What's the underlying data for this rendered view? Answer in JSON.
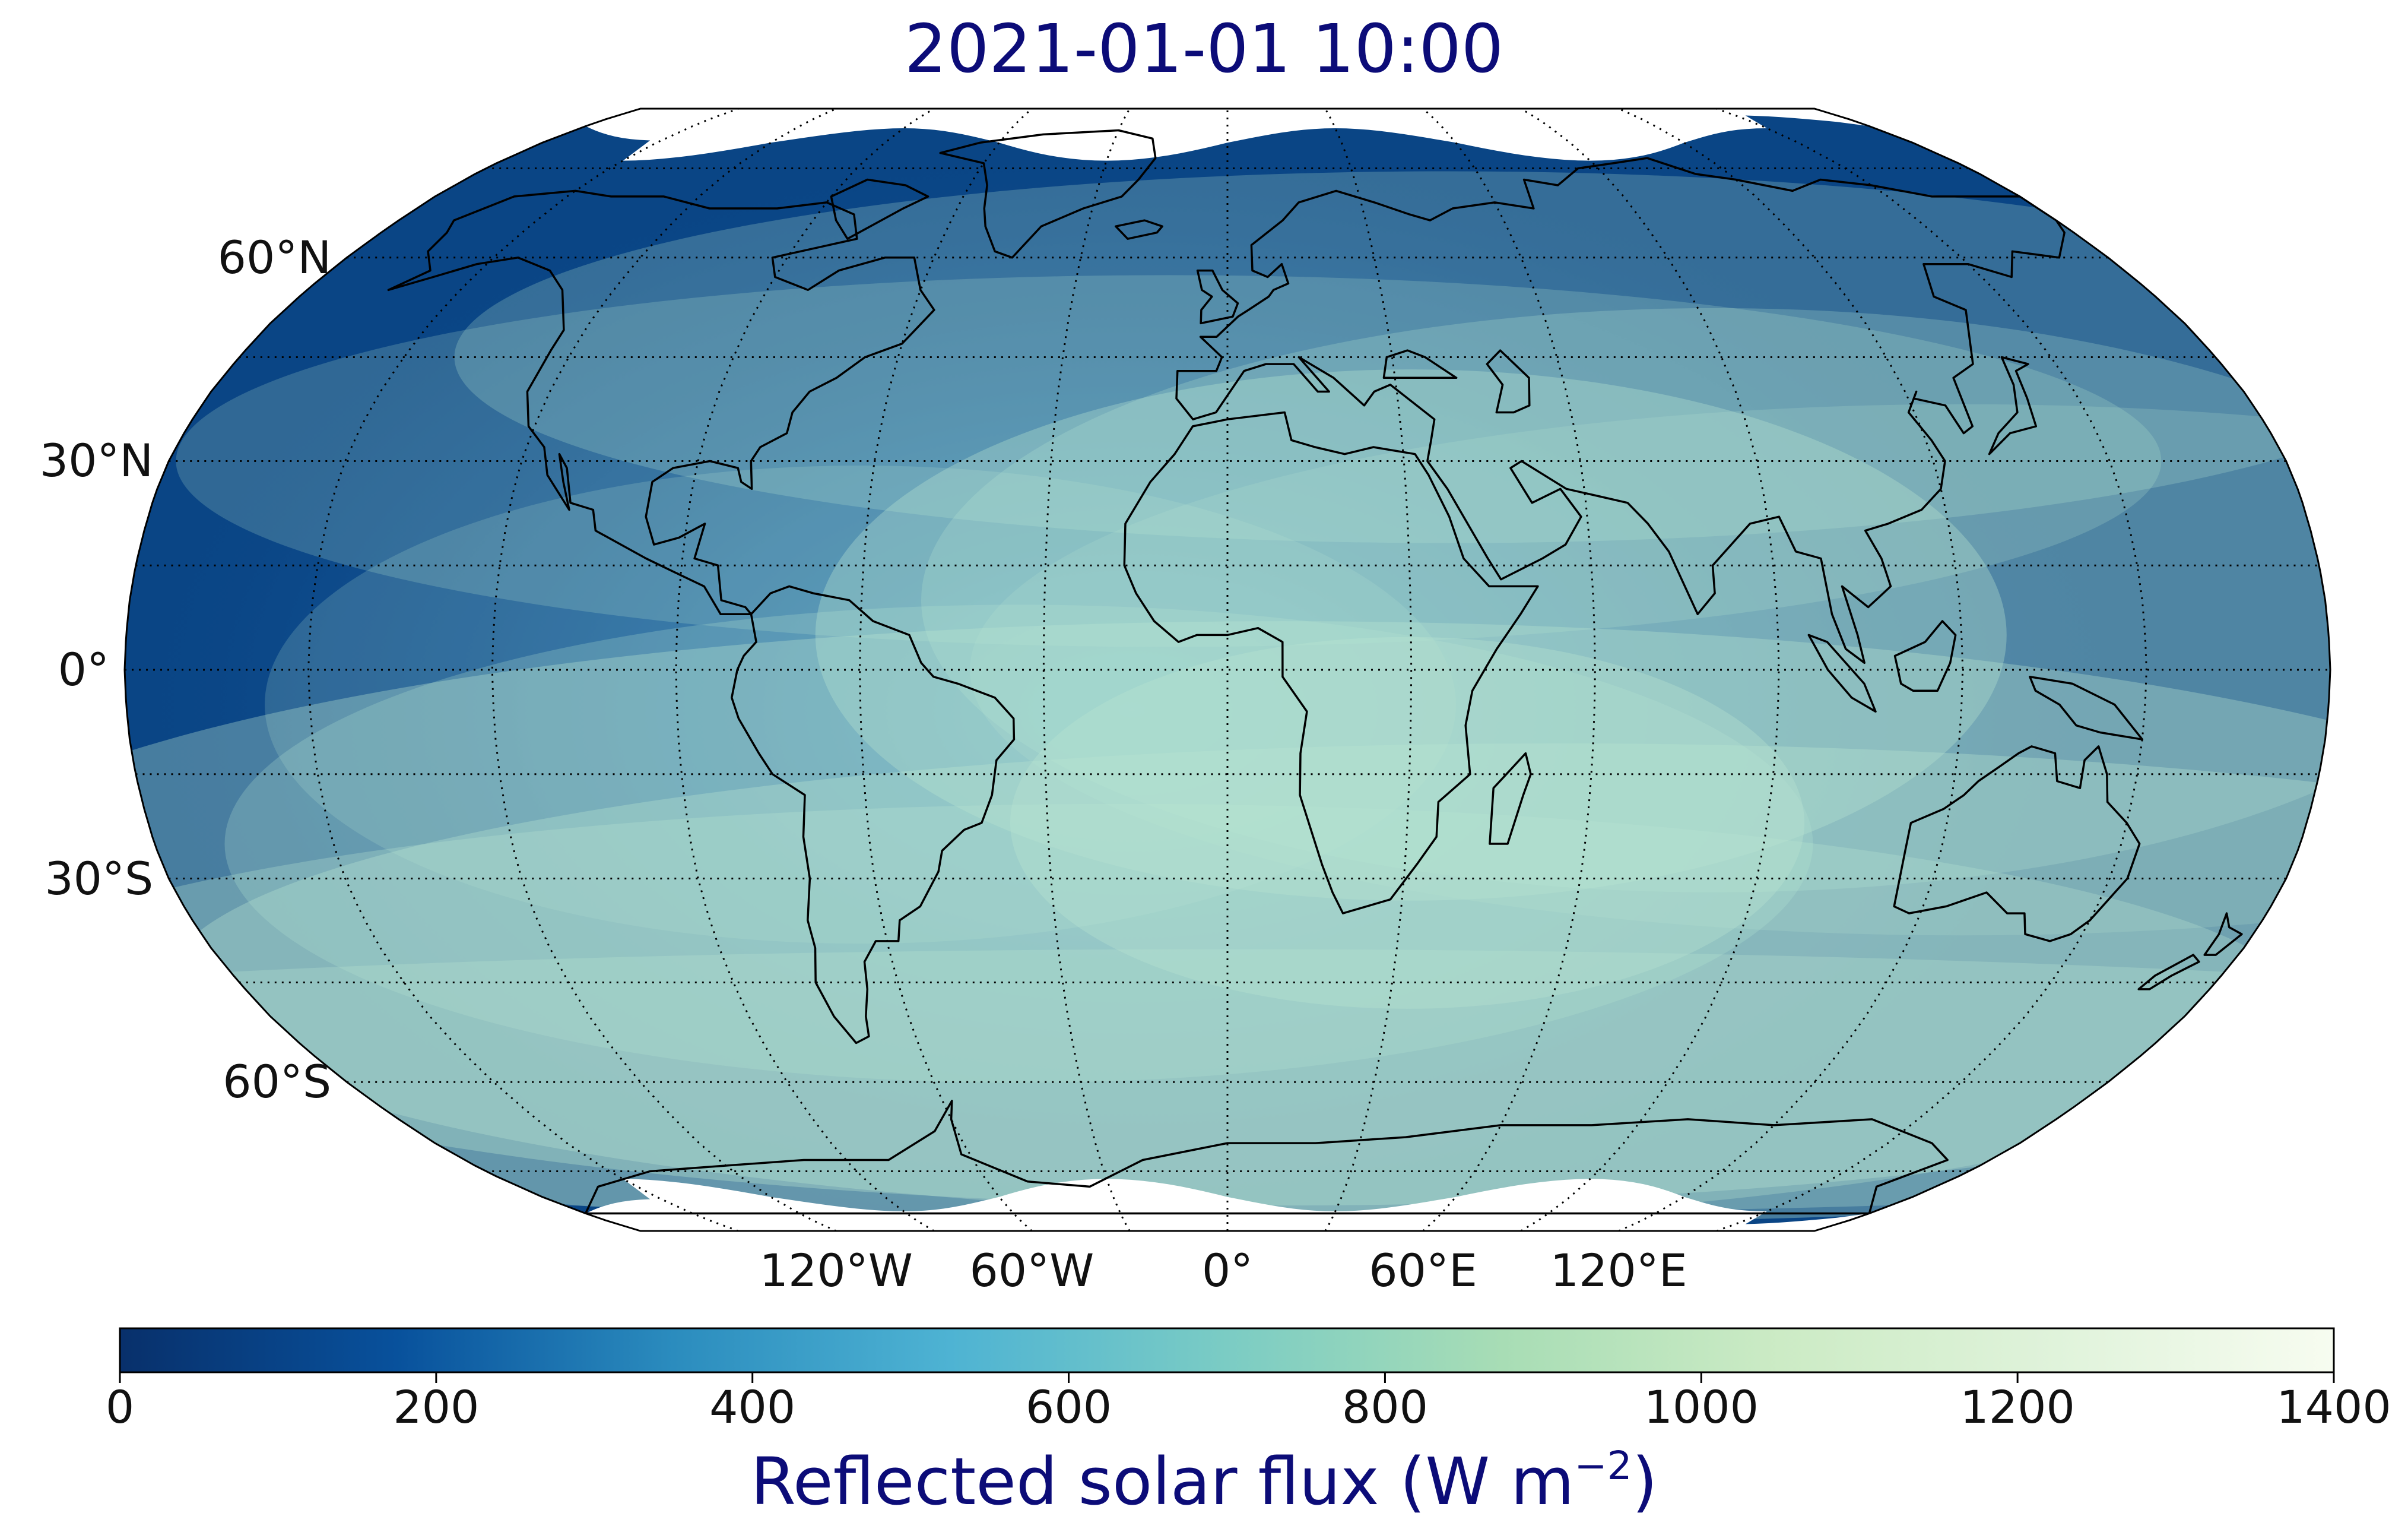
{
  "title": "2021-01-01 10:00",
  "map": {
    "projection": "robinson",
    "graticule": {
      "lat_step_deg": 30,
      "lon_step_deg": 30,
      "style": "dotted"
    },
    "lat_labels": [
      "60°N",
      "30°N",
      "0°",
      "30°S",
      "60°S"
    ],
    "lon_labels": [
      "120°W",
      "60°W",
      "0°",
      "60°E",
      "120°E"
    ],
    "ocean_color": "#0a4585",
    "land_outline_color": "#000000"
  },
  "colorbar": {
    "colormap": "GnBu_r",
    "colors": [
      "#08306b",
      "#08519c",
      "#2b8cbe",
      "#4eb3d3",
      "#7bccc4",
      "#a8ddb5",
      "#ccebc5",
      "#e0f3db",
      "#f7fcf0"
    ],
    "min": 0,
    "max": 1400,
    "ticks": [
      "0",
      "200",
      "400",
      "600",
      "800",
      "1000",
      "1200",
      "1400"
    ],
    "label_main": "Reflected solar flux (W m",
    "label_sup": "−2",
    "label_close": ")"
  },
  "chart_data": {
    "type": "heatmap",
    "title": "2021-01-01 10:00",
    "variable": "Reflected solar flux (W m−2)",
    "value_range": [
      0,
      1400
    ],
    "colorbar_ticks": [
      0,
      200,
      400,
      600,
      800,
      1000,
      1200,
      1400
    ],
    "x_ticks": [
      "120°W",
      "60°W",
      "0°",
      "60°E",
      "120°E"
    ],
    "y_ticks": [
      "60°N",
      "30°N",
      "0°",
      "30°S",
      "60°S"
    ]
  }
}
